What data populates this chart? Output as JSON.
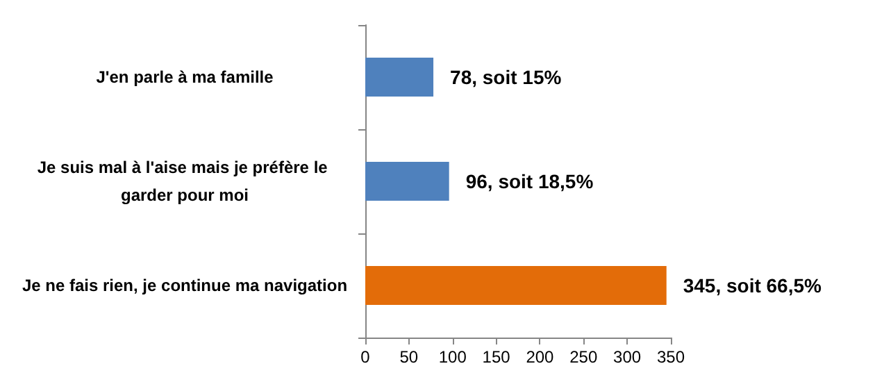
{
  "chart_data": {
    "type": "bar",
    "orientation": "horizontal",
    "categories": [
      "J'en parle à ma famille",
      "Je suis mal à l'aise mais je préfère le garder pour moi",
      "Je ne fais rien, je continue ma navigation"
    ],
    "values": [
      78,
      96,
      345
    ],
    "colors": [
      "#4f81bd",
      "#4f81bd",
      "#e36c09"
    ],
    "value_labels": [
      "78, soit 15%",
      "96, soit 18,5%",
      "345, soit 66,5%"
    ],
    "xlim": [
      0,
      350
    ],
    "xticks": [
      0,
      50,
      100,
      150,
      200,
      250,
      300,
      350
    ],
    "grid": false
  }
}
